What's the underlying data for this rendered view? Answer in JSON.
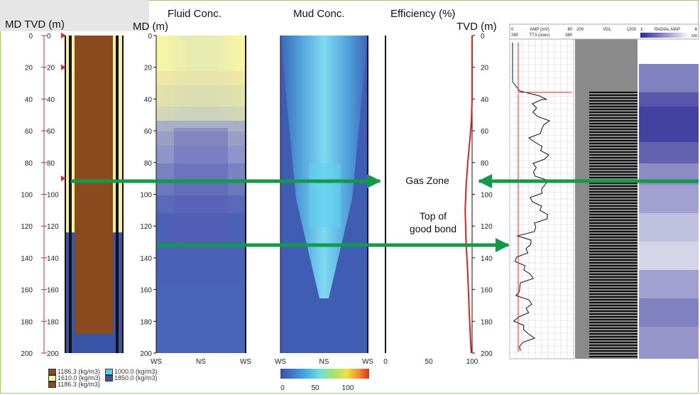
{
  "titles": {
    "md_tvd": "MD TVD (m)",
    "fluid": "Fluid Conc.",
    "md": "MD (m)",
    "mud": "Mud Conc.",
    "efficiency": "Efficiency (%)",
    "tvd": "TVD (m)"
  },
  "annotations": {
    "gas_zone": "Gas Zone",
    "top_bond_1": "Top of",
    "top_bond_2": "good bond"
  },
  "legend": {
    "items": [
      {
        "label": "1186.3 (kg/m3)",
        "color": "#8a4a1e"
      },
      {
        "label": "1000.0 (kg/m3)",
        "color": "#4fd4e0"
      },
      {
        "label": "1610.0 (kg/m3)",
        "color": "#f7f19a"
      },
      {
        "label": "1850.0 (kg/m3)",
        "color": "#3a54a8"
      },
      {
        "label": "1186.3 (kg/m3)",
        "color": "#8a4a1e"
      }
    ]
  },
  "colorbar": {
    "ticks": [
      "0",
      "50",
      "100"
    ]
  },
  "log_header": {
    "amp_label": "AMP (mV)",
    "amp_min": "0",
    "amp_max": "80",
    "tt3_label": "TT3 (usec)",
    "tt3_min": "280",
    "tt3_max": "380",
    "vdl_label": "VDL",
    "vdl_min": "200",
    "vdl_max": "1200",
    "radial_label": "RADIAL MAP",
    "radial_min": "1",
    "radial_max": "8",
    "radial_sub_min": "52",
    "radial_sub_max": "0"
  },
  "colors": {
    "brown": "#8a4a1e",
    "yellow": "#f7f19a",
    "blue": "#3a54a8",
    "arrow": "#129a48",
    "efficiency_line": "#e02020",
    "frame": "#9ccc65"
  },
  "chart_data": [
    {
      "type": "table",
      "title": "MD TVD (m)",
      "depth_ticks": [
        0,
        20,
        40,
        60,
        80,
        100,
        120,
        140,
        160,
        180,
        200
      ],
      "ylim": [
        0,
        200
      ],
      "columns": [
        {
          "name": "annulus",
          "bands": [
            {
              "from": 0,
              "to": 124,
              "fluid": "1610.0 (kg/m3)"
            },
            {
              "from": 124,
              "to": 200,
              "fluid": "1850.0 (kg/m3)"
            }
          ]
        },
        {
          "name": "casing",
          "bands": [
            {
              "from": 0,
              "to": 188,
              "fluid": "1186.3 (kg/m3)"
            },
            {
              "from": 188,
              "to": 200,
              "fluid": "1850.0 (kg/m3)"
            }
          ]
        }
      ],
      "markers_md": [
        0,
        20,
        90
      ]
    },
    {
      "type": "heatmap",
      "title": "Fluid Conc.",
      "ylabel": "MD (m)",
      "x_categories": [
        "WS",
        "NS",
        "WS"
      ],
      "ylim": [
        0,
        200
      ],
      "y_ticks": [
        0,
        20,
        40,
        60,
        80,
        100,
        120,
        140,
        160,
        180,
        200
      ]
    },
    {
      "type": "heatmap",
      "title": "Mud Conc.",
      "x_categories": [
        "WS",
        "NS",
        "WS"
      ],
      "ylim": [
        0,
        200
      ],
      "colorbar_range": [
        0,
        100
      ],
      "colorbar_ticks": [
        0,
        50,
        100
      ]
    },
    {
      "type": "line",
      "title": "Efficiency (%)",
      "ylabel": "TVD (m)",
      "xlim": [
        0,
        100
      ],
      "x_ticks": [
        0,
        50,
        100
      ],
      "ylim": [
        0,
        200
      ],
      "y_ticks": [
        0,
        20,
        40,
        60,
        80,
        100,
        120,
        140,
        160,
        180,
        200
      ],
      "series": [
        {
          "x": [
            100,
            100,
            100,
            99,
            98,
            95,
            93,
            92,
            93,
            95,
            96,
            97,
            98,
            99
          ],
          "y": [
            0,
            20,
            40,
            55,
            62,
            80,
            95,
            110,
            130,
            150,
            165,
            178,
            190,
            200
          ]
        }
      ]
    }
  ]
}
